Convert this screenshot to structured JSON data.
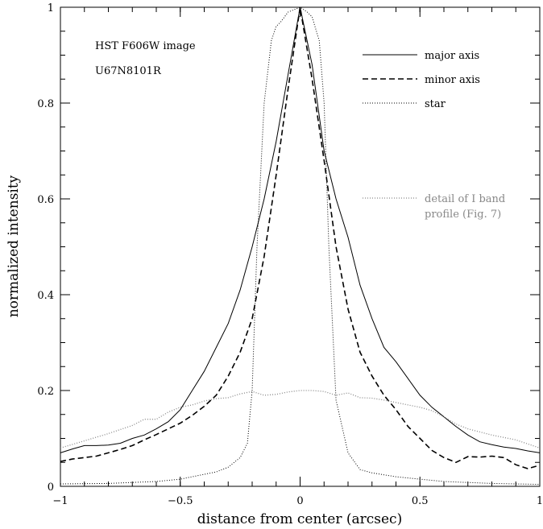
{
  "chart_data": {
    "type": "line",
    "xlabel": "distance from center (arcsec)",
    "ylabel": "normalized intensity",
    "xlim": [
      -1,
      1
    ],
    "ylim": [
      0,
      1
    ],
    "xticks": [
      -1,
      -0.5,
      0,
      0.5,
      1
    ],
    "xtick_labels": [
      "−1",
      "−0.5",
      "0",
      "0.5",
      "1"
    ],
    "yticks": [
      0,
      0.2,
      0.4,
      0.6,
      0.8,
      1
    ],
    "ytick_labels": [
      "0",
      "0.2",
      "0.4",
      "0.6",
      "0.8",
      "1"
    ],
    "annotations": [
      "HST F606W image",
      "U67N8101R"
    ],
    "legend_position": "top-right",
    "series": [
      {
        "name": "major axis",
        "style": "solid",
        "color": "#000000",
        "x": [
          -1,
          -0.95,
          -0.9,
          -0.85,
          -0.8,
          -0.75,
          -0.7,
          -0.65,
          -0.6,
          -0.55,
          -0.5,
          -0.45,
          -0.4,
          -0.35,
          -0.3,
          -0.25,
          -0.2,
          -0.15,
          -0.1,
          -0.05,
          0,
          0.05,
          0.1,
          0.15,
          0.2,
          0.25,
          0.3,
          0.35,
          0.4,
          0.45,
          0.5,
          0.55,
          0.6,
          0.65,
          0.7,
          0.75,
          0.8,
          0.85,
          0.9,
          0.95,
          1
        ],
        "y": [
          0.07,
          0.078,
          0.085,
          0.085,
          0.086,
          0.09,
          0.1,
          0.107,
          0.12,
          0.135,
          0.16,
          0.2,
          0.24,
          0.29,
          0.34,
          0.41,
          0.5,
          0.6,
          0.72,
          0.86,
          1,
          0.88,
          0.7,
          0.6,
          0.52,
          0.42,
          0.35,
          0.29,
          0.26,
          0.225,
          0.19,
          0.165,
          0.145,
          0.125,
          0.107,
          0.093,
          0.087,
          0.082,
          0.079,
          0.074,
          0.07
        ]
      },
      {
        "name": "minor axis",
        "style": "dashed",
        "color": "#000000",
        "x": [
          -1,
          -0.95,
          -0.9,
          -0.85,
          -0.8,
          -0.75,
          -0.7,
          -0.65,
          -0.6,
          -0.55,
          -0.5,
          -0.45,
          -0.4,
          -0.35,
          -0.3,
          -0.25,
          -0.2,
          -0.15,
          -0.1,
          -0.05,
          0,
          0.05,
          0.1,
          0.15,
          0.2,
          0.25,
          0.3,
          0.35,
          0.4,
          0.45,
          0.5,
          0.55,
          0.6,
          0.65,
          0.7,
          0.75,
          0.8,
          0.85,
          0.9,
          0.95,
          1
        ],
        "y": [
          0.052,
          0.057,
          0.06,
          0.063,
          0.07,
          0.077,
          0.085,
          0.097,
          0.108,
          0.12,
          0.132,
          0.148,
          0.167,
          0.19,
          0.23,
          0.28,
          0.35,
          0.48,
          0.65,
          0.83,
          1,
          0.85,
          0.68,
          0.5,
          0.37,
          0.28,
          0.23,
          0.19,
          0.16,
          0.125,
          0.1,
          0.075,
          0.06,
          0.05,
          0.062,
          0.061,
          0.063,
          0.06,
          0.045,
          0.037,
          0.044
        ]
      },
      {
        "name": "star",
        "style": "dotted",
        "color": "#000000",
        "x": [
          -1,
          -0.8,
          -0.6,
          -0.5,
          -0.45,
          -0.4,
          -0.35,
          -0.3,
          -0.25,
          -0.22,
          -0.2,
          -0.18,
          -0.15,
          -0.12,
          -0.1,
          -0.08,
          -0.05,
          0,
          0.03,
          0.05,
          0.08,
          0.1,
          0.12,
          0.15,
          0.2,
          0.25,
          0.3,
          0.4,
          0.5,
          0.6,
          0.8,
          1
        ],
        "y": [
          0.005,
          0.006,
          0.01,
          0.015,
          0.02,
          0.025,
          0.03,
          0.04,
          0.06,
          0.09,
          0.2,
          0.5,
          0.8,
          0.93,
          0.96,
          0.97,
          0.99,
          1.0,
          0.99,
          0.98,
          0.93,
          0.8,
          0.5,
          0.18,
          0.07,
          0.035,
          0.028,
          0.02,
          0.015,
          0.01,
          0.006,
          0.004
        ]
      },
      {
        "name": "detail of I band profile (Fig. 7)",
        "style": "dotted",
        "color": "#888888",
        "x": [
          -1,
          -0.9,
          -0.8,
          -0.7,
          -0.65,
          -0.6,
          -0.55,
          -0.5,
          -0.45,
          -0.4,
          -0.35,
          -0.3,
          -0.25,
          -0.2,
          -0.15,
          -0.1,
          -0.05,
          0,
          0.05,
          0.1,
          0.15,
          0.2,
          0.25,
          0.3,
          0.35,
          0.4,
          0.45,
          0.5,
          0.55,
          0.6,
          0.65,
          0.7,
          0.8,
          0.9,
          1
        ],
        "y": [
          0.08,
          0.095,
          0.11,
          0.127,
          0.14,
          0.14,
          0.155,
          0.165,
          0.17,
          0.178,
          0.183,
          0.185,
          0.193,
          0.198,
          0.19,
          0.192,
          0.197,
          0.2,
          0.2,
          0.198,
          0.19,
          0.195,
          0.185,
          0.184,
          0.18,
          0.175,
          0.17,
          0.165,
          0.158,
          0.145,
          0.13,
          0.12,
          0.107,
          0.097,
          0.08
        ]
      }
    ]
  },
  "legend": {
    "labels": [
      "major axis",
      "minor axis",
      "star"
    ],
    "gray_label_line1": "detail of I band",
    "gray_label_line2": "profile (Fig. 7)"
  }
}
